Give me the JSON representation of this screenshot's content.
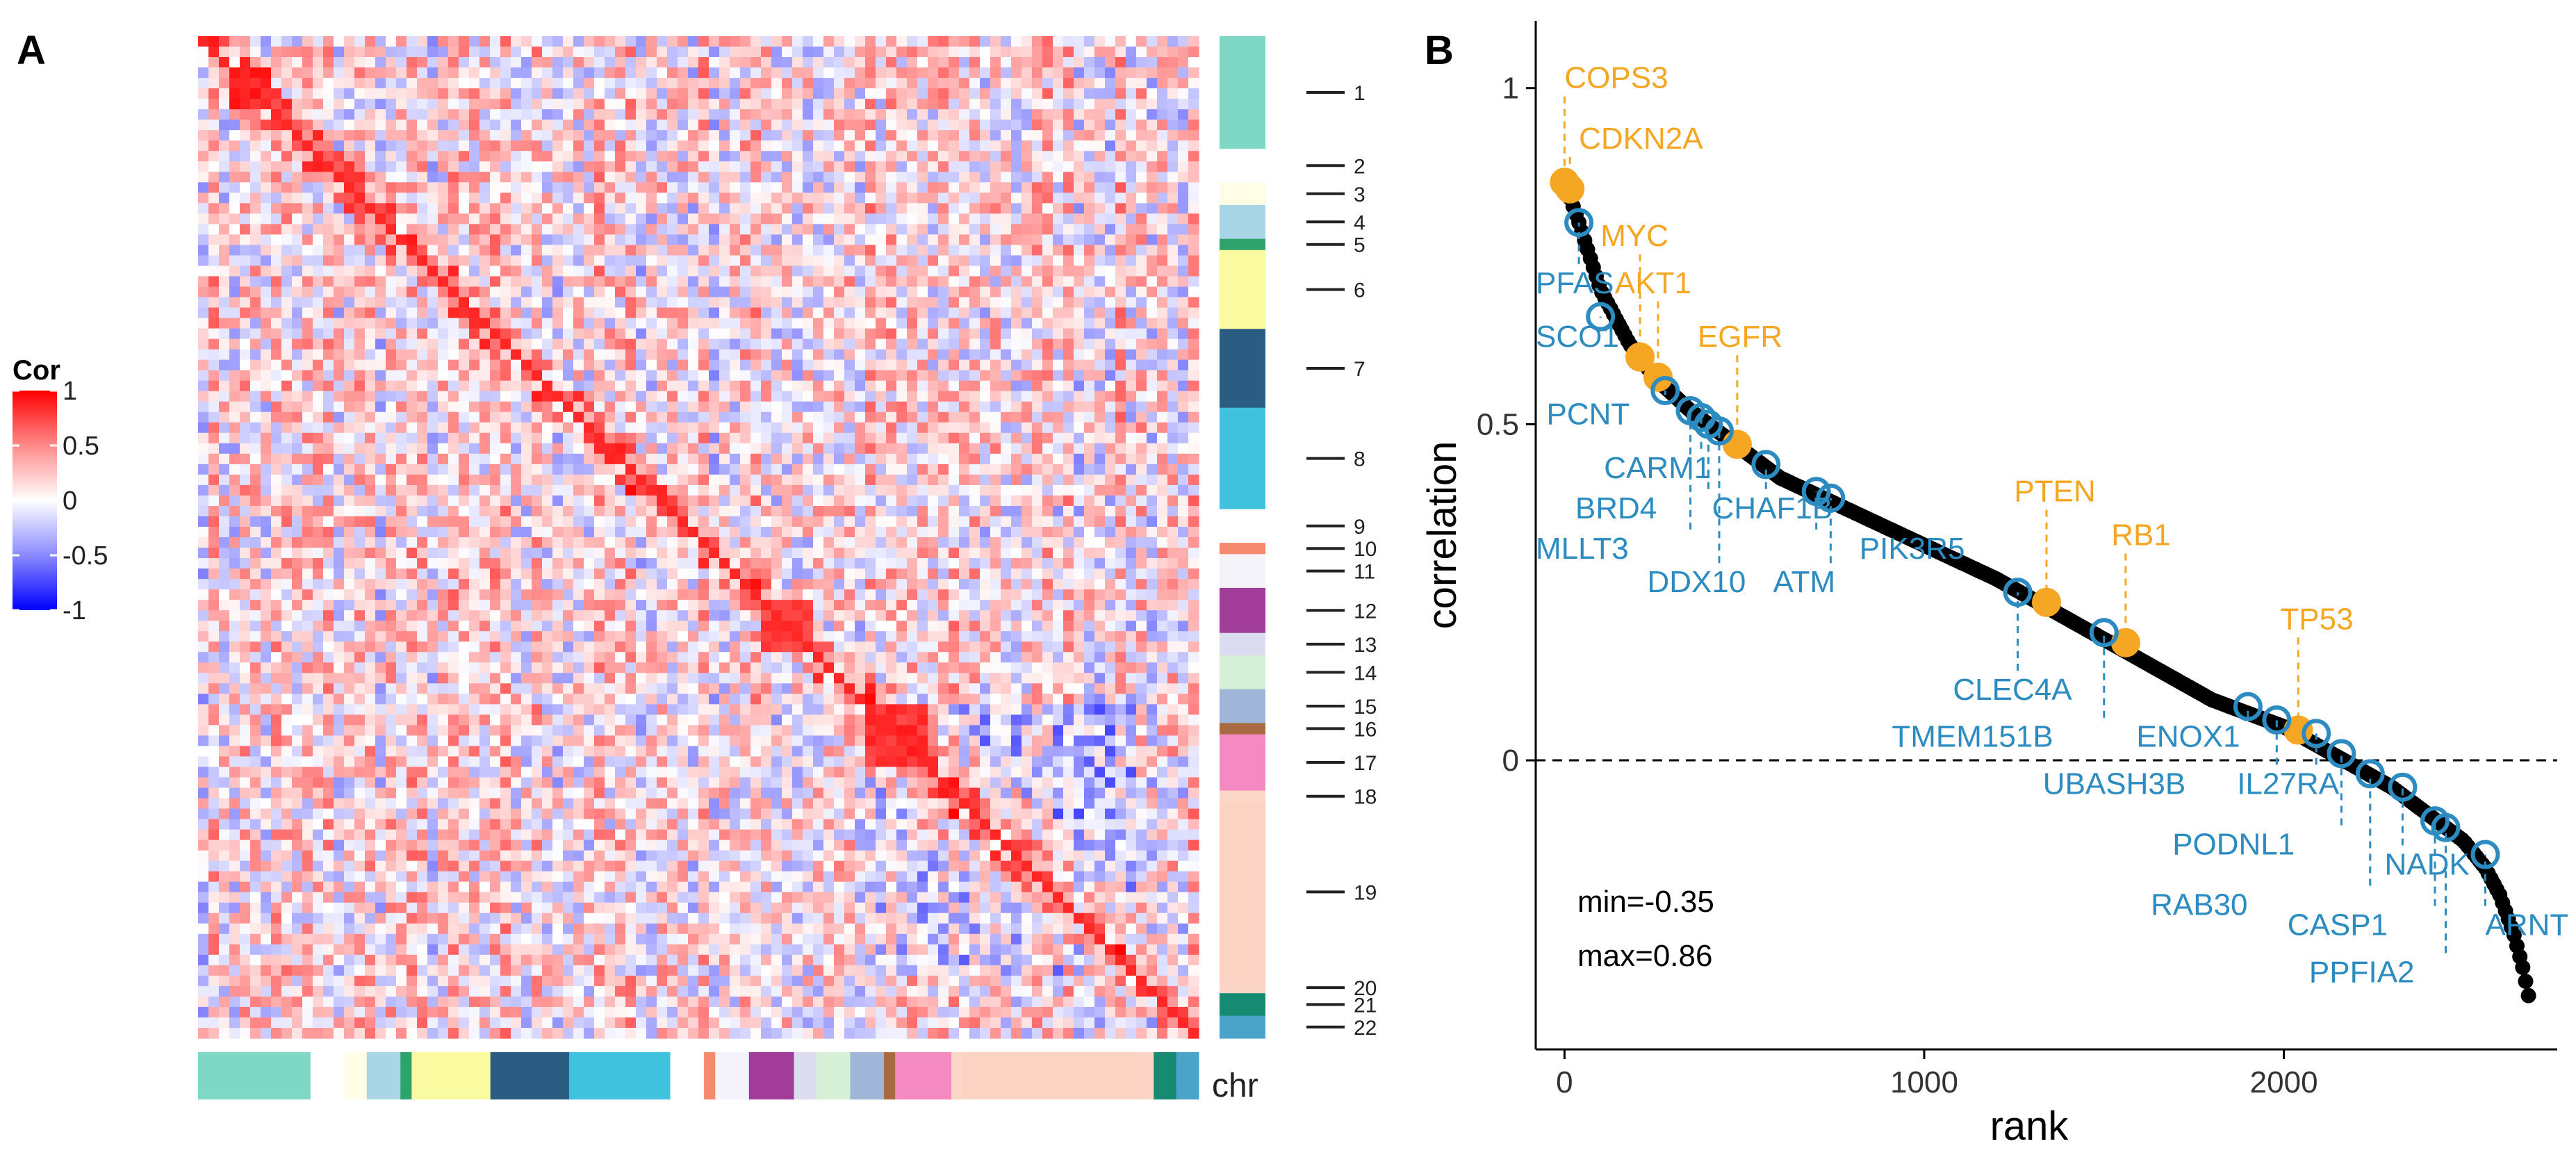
{
  "panels": {
    "a": "A",
    "b": "B"
  },
  "legend": {
    "title": "Cor",
    "ticks": [
      {
        "label": "1",
        "value": 1
      },
      {
        "label": "0.5",
        "value": 0.5
      },
      {
        "label": "0",
        "value": 0
      },
      {
        "label": "-0.5",
        "value": -0.5
      },
      {
        "label": "-1",
        "value": -1
      }
    ],
    "colors": {
      "high": "#ff0000",
      "mid": "#ffffff",
      "low": "#0000ff"
    }
  },
  "heatmap": {
    "chr_label": "chr",
    "chromosomes": [
      {
        "label": "1",
        "color": "#7fd7c6",
        "size": 10
      },
      {
        "label": "2",
        "color": "#ffffff",
        "size": 3
      },
      {
        "label": "3",
        "color": "#fffde6",
        "size": 2
      },
      {
        "label": "4",
        "color": "#a8d6e6",
        "size": 3
      },
      {
        "label": "5",
        "color": "#2ea36b",
        "size": 1
      },
      {
        "label": "6",
        "color": "#fafaa0",
        "size": 7
      },
      {
        "label": "7",
        "color": "#2b5d82",
        "size": 7
      },
      {
        "label": "8",
        "color": "#3fc2de",
        "size": 9
      },
      {
        "label": "9",
        "color": "#ffffff",
        "size": 3
      },
      {
        "label": "10",
        "color": "#f58a6e",
        "size": 1
      },
      {
        "label": "11",
        "color": "#f3f3f9",
        "size": 3
      },
      {
        "label": "12",
        "color": "#a13d99",
        "size": 4
      },
      {
        "label": "13",
        "color": "#dcdcf0",
        "size": 2
      },
      {
        "label": "14",
        "color": "#d6f0d8",
        "size": 3
      },
      {
        "label": "15",
        "color": "#9fb6d8",
        "size": 3
      },
      {
        "label": "16",
        "color": "#a86a43",
        "size": 1
      },
      {
        "label": "17",
        "color": "#f58ac2",
        "size": 5
      },
      {
        "label": "18",
        "color": "#fcd6c6",
        "size": 1
      },
      {
        "label": "19",
        "color": "#fcd3c2",
        "size": 16
      },
      {
        "label": "20",
        "color": "#fad4c4",
        "size": 1
      },
      {
        "label": "21",
        "color": "#178a72",
        "size": 2
      },
      {
        "label": "22",
        "color": "#4aa3c8",
        "size": 2
      }
    ],
    "diagonal_blocks": [
      {
        "start": 0.03,
        "end": 0.07,
        "strength": 0.95
      },
      {
        "start": 0.56,
        "end": 0.61,
        "strength": 0.85
      },
      {
        "start": 0.66,
        "end": 0.72,
        "strength": 0.9
      },
      {
        "start": 0.69,
        "end": 0.73,
        "strength": 0.6
      }
    ]
  },
  "chart_data": {
    "type": "scatter",
    "title": "",
    "xlabel": "rank",
    "ylabel": "correlation",
    "xlim": [
      -80,
      2760
    ],
    "ylim": [
      -0.43,
      1.1
    ],
    "xticks": [
      {
        "label": "0",
        "value": 0
      },
      {
        "label": "1000",
        "value": 1000
      },
      {
        "label": "2000",
        "value": 2000
      }
    ],
    "yticks": [
      {
        "label": "0",
        "value": 0
      },
      {
        "label": "0.5",
        "value": 0.5
      },
      {
        "label": "1",
        "value": 1
      }
    ],
    "reference_line": {
      "y": 0,
      "style": "dashed"
    },
    "n_points": 2680,
    "curve": [
      [
        0,
        0.86
      ],
      [
        40,
        0.8
      ],
      [
        100,
        0.7
      ],
      [
        180,
        0.62
      ],
      [
        250,
        0.57
      ],
      [
        350,
        0.52
      ],
      [
        450,
        0.48
      ],
      [
        600,
        0.42
      ],
      [
        800,
        0.37
      ],
      [
        1000,
        0.32
      ],
      [
        1200,
        0.27
      ],
      [
        1400,
        0.21
      ],
      [
        1600,
        0.15
      ],
      [
        1800,
        0.09
      ],
      [
        2000,
        0.05
      ],
      [
        2100,
        0.02
      ],
      [
        2200,
        -0.01
      ],
      [
        2300,
        -0.04
      ],
      [
        2400,
        -0.08
      ],
      [
        2500,
        -0.12
      ],
      [
        2560,
        -0.16
      ],
      [
        2600,
        -0.2
      ],
      [
        2640,
        -0.26
      ],
      [
        2665,
        -0.31
      ],
      [
        2680,
        -0.35
      ]
    ],
    "stats": {
      "min_label": "min=-0.35",
      "max_label": "max=0.86"
    },
    "highlighted_genes": [
      {
        "name": "COPS3",
        "rank": 0,
        "value": 0.86,
        "group": "orange"
      },
      {
        "name": "CDKN2A",
        "rank": 15,
        "value": 0.85,
        "group": "orange"
      },
      {
        "name": "MYC",
        "rank": 210,
        "value": 0.6,
        "group": "orange"
      },
      {
        "name": "AKT1",
        "rank": 260,
        "value": 0.57,
        "group": "orange"
      },
      {
        "name": "EGFR",
        "rank": 480,
        "value": 0.47,
        "group": "orange"
      },
      {
        "name": "PTEN",
        "rank": 1340,
        "value": 0.235,
        "group": "orange"
      },
      {
        "name": "RB1",
        "rank": 1560,
        "value": 0.175,
        "group": "orange"
      },
      {
        "name": "TP53",
        "rank": 2040,
        "value": 0.045,
        "group": "orange"
      },
      {
        "name": "PFAS",
        "rank": 40,
        "value": 0.8,
        "group": "blue"
      },
      {
        "name": "SCO1",
        "rank": 100,
        "value": 0.66,
        "group": "blue"
      },
      {
        "name": "PCNT",
        "rank": 280,
        "value": 0.55,
        "group": "blue"
      },
      {
        "name": "CARM1",
        "rank": 380,
        "value": 0.51,
        "group": "blue"
      },
      {
        "name": "BRD4",
        "rank": 400,
        "value": 0.5,
        "group": "blue"
      },
      {
        "name": "MLLT3",
        "rank": 350,
        "value": 0.52,
        "group": "blue"
      },
      {
        "name": "CHAF1B",
        "rank": 560,
        "value": 0.44,
        "group": "blue"
      },
      {
        "name": "DDX10",
        "rank": 430,
        "value": 0.49,
        "group": "blue"
      },
      {
        "name": "ATM",
        "rank": 740,
        "value": 0.39,
        "group": "blue"
      },
      {
        "name": "PIK3R5",
        "rank": 700,
        "value": 0.4,
        "group": "blue"
      },
      {
        "name": "CLEC4A",
        "rank": 1260,
        "value": 0.25,
        "group": "blue"
      },
      {
        "name": "TMEM151B",
        "rank": 1500,
        "value": 0.19,
        "group": "blue"
      },
      {
        "name": "ENOX1",
        "rank": 1900,
        "value": 0.08,
        "group": "blue"
      },
      {
        "name": "UBASH3B",
        "rank": 1980,
        "value": 0.06,
        "group": "blue"
      },
      {
        "name": "IL27RA",
        "rank": 2090,
        "value": 0.04,
        "group": "blue"
      },
      {
        "name": "PODNL1",
        "rank": 2160,
        "value": 0.01,
        "group": "blue"
      },
      {
        "name": "RAB30",
        "rank": 2240,
        "value": -0.02,
        "group": "blue"
      },
      {
        "name": "NADK",
        "rank": 2330,
        "value": -0.04,
        "group": "blue"
      },
      {
        "name": "CASP1",
        "rank": 2420,
        "value": -0.09,
        "group": "blue"
      },
      {
        "name": "PPFIA2",
        "rank": 2450,
        "value": -0.1,
        "group": "blue"
      },
      {
        "name": "ARNT",
        "rank": 2560,
        "value": -0.14,
        "group": "blue"
      }
    ],
    "label_lines": [
      {
        "gene": "COPS3",
        "x0": 0.0,
        "y0": 0.84,
        "x1": 0.0,
        "y1": 0.86
      },
      {
        "gene": "CDKN2A",
        "x0": 15,
        "y0": 0.82,
        "x1": 15,
        "y1": 0.85
      },
      {
        "gene": "MYC",
        "x0": 210,
        "y0": 0.7,
        "x1": 210,
        "y1": 0.6
      },
      {
        "gene": "AKT1",
        "x0": 260,
        "y0": 0.66,
        "x1": 260,
        "y1": 0.57
      },
      {
        "gene": "EGFR",
        "x0": 480,
        "y0": 0.57,
        "x1": 480,
        "y1": 0.47
      },
      {
        "gene": "PTEN",
        "x0": 1340,
        "y0": 0.36,
        "x1": 1340,
        "y1": 0.24
      },
      {
        "gene": "RB1",
        "x0": 1560,
        "y0": 0.3,
        "x1": 1560,
        "y1": 0.18
      },
      {
        "gene": "TP53",
        "x0": 2040,
        "y0": 0.14,
        "x1": 2040,
        "y1": 0.05
      }
    ],
    "labels": [
      {
        "name": "COPS3",
        "lx": 0,
        "ly": 1.0,
        "group": "orange"
      },
      {
        "name": "CDKN2A",
        "lx": 40,
        "ly": 0.91,
        "group": "orange"
      },
      {
        "name": "MYC",
        "lx": 100,
        "ly": 0.765,
        "group": "orange"
      },
      {
        "name": "AKT1",
        "lx": 140,
        "ly": 0.695,
        "group": "orange"
      },
      {
        "name": "EGFR",
        "lx": 370,
        "ly": 0.615,
        "group": "orange"
      },
      {
        "name": "PTEN",
        "lx": 1250,
        "ly": 0.385,
        "group": "orange"
      },
      {
        "name": "RB1",
        "lx": 1520,
        "ly": 0.32,
        "group": "orange"
      },
      {
        "name": "TP53",
        "lx": 1990,
        "ly": 0.195,
        "group": "orange"
      },
      {
        "name": "PFAS",
        "lx": -80,
        "ly": 0.695,
        "group": "blue"
      },
      {
        "name": "SCO1",
        "lx": -80,
        "ly": 0.615,
        "group": "blue"
      },
      {
        "name": "PCNT",
        "lx": -50,
        "ly": 0.5,
        "group": "blue"
      },
      {
        "name": "CARM1",
        "lx": 110,
        "ly": 0.42,
        "group": "blue"
      },
      {
        "name": "BRD4",
        "lx": 30,
        "ly": 0.36,
        "group": "blue"
      },
      {
        "name": "MLLT3",
        "lx": -80,
        "ly": 0.3,
        "group": "blue"
      },
      {
        "name": "CHAF1B",
        "lx": 410,
        "ly": 0.36,
        "group": "blue"
      },
      {
        "name": "DDX10",
        "lx": 230,
        "ly": 0.25,
        "group": "blue"
      },
      {
        "name": "ATM",
        "lx": 580,
        "ly": 0.25,
        "group": "blue"
      },
      {
        "name": "PIK3R5",
        "lx": 820,
        "ly": 0.3,
        "group": "blue"
      },
      {
        "name": "CLEC4A",
        "lx": 1080,
        "ly": 0.09,
        "group": "blue"
      },
      {
        "name": "TMEM151B",
        "lx": 910,
        "ly": 0.02,
        "group": "blue"
      },
      {
        "name": "ENOX1",
        "lx": 1590,
        "ly": 0.02,
        "group": "blue"
      },
      {
        "name": "UBASH3B",
        "lx": 1330,
        "ly": -0.05,
        "group": "blue"
      },
      {
        "name": "IL27RA",
        "lx": 1870,
        "ly": -0.05,
        "group": "blue"
      },
      {
        "name": "PODNL1",
        "lx": 1690,
        "ly": -0.14,
        "group": "blue"
      },
      {
        "name": "RAB30",
        "lx": 1630,
        "ly": -0.23,
        "group": "blue"
      },
      {
        "name": "NADK",
        "lx": 2280,
        "ly": -0.17,
        "group": "blue"
      },
      {
        "name": "CASP1",
        "lx": 2010,
        "ly": -0.26,
        "group": "blue"
      },
      {
        "name": "PPFIA2",
        "lx": 2070,
        "ly": -0.33,
        "group": "blue"
      },
      {
        "name": "ARNT",
        "lx": 2560,
        "ly": -0.26,
        "group": "blue"
      }
    ]
  }
}
